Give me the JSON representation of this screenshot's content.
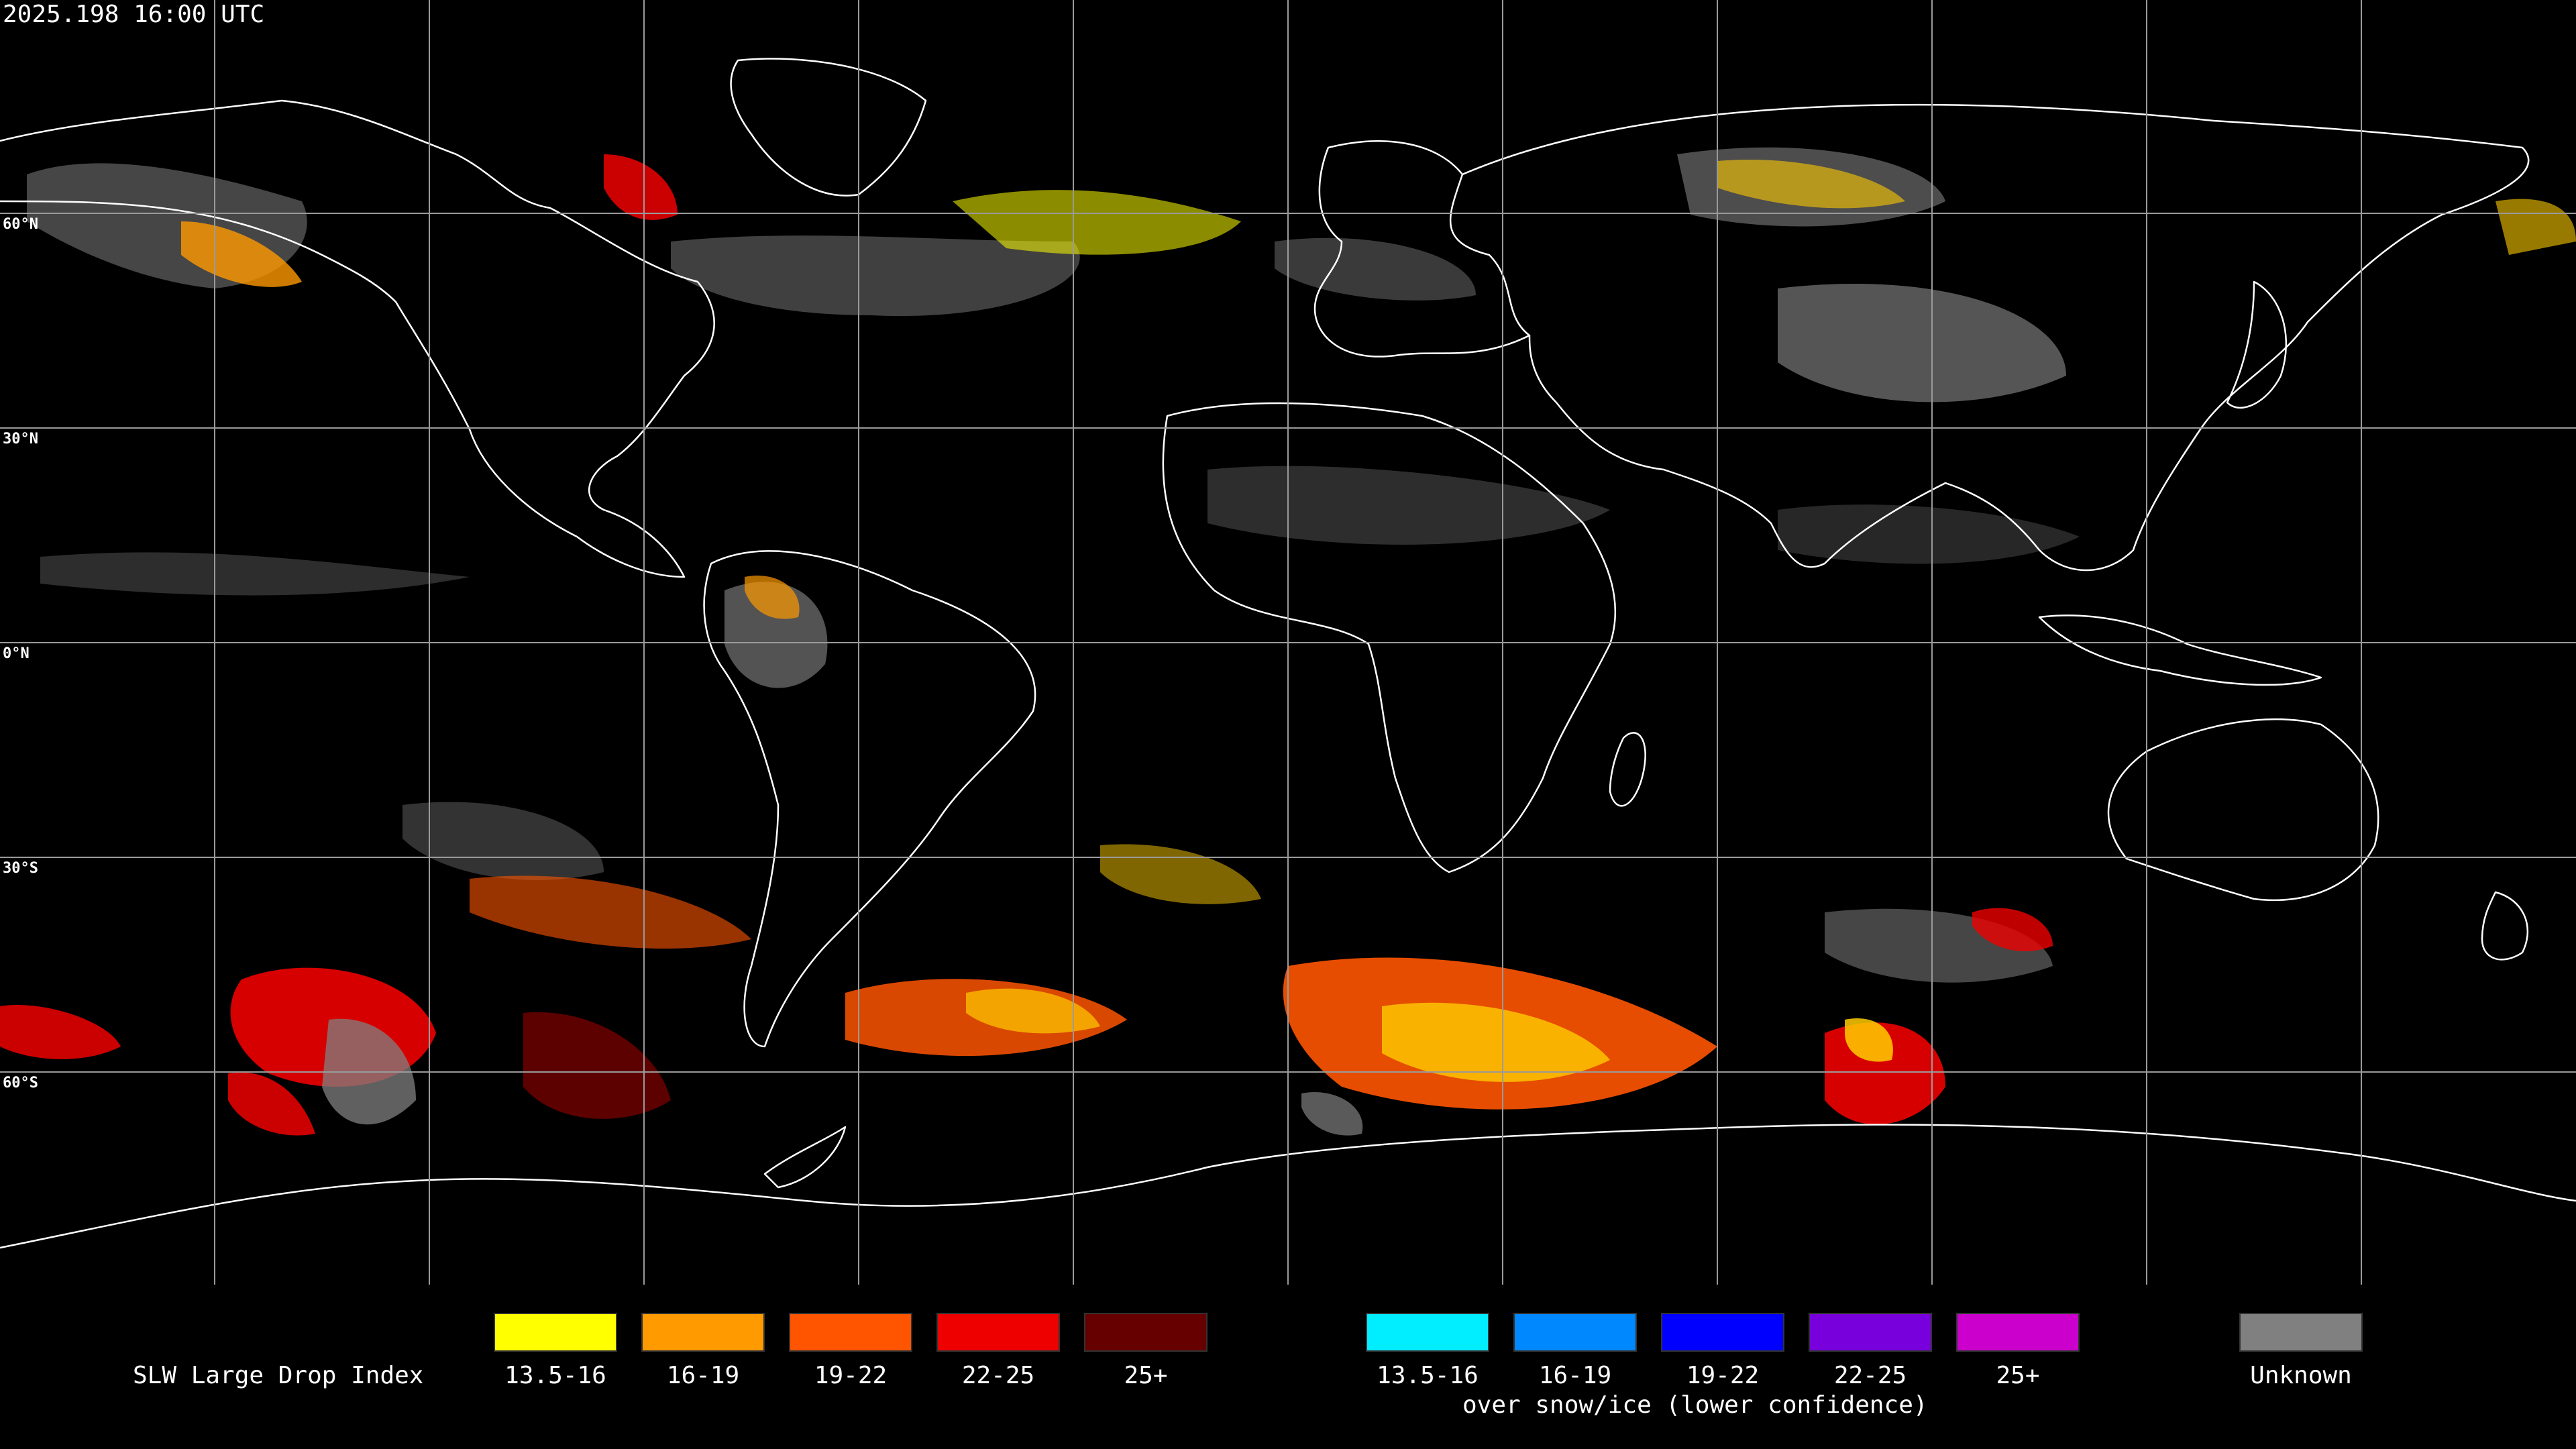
{
  "header": {
    "timestamp": "2025.198 16:00 UTC"
  },
  "map": {
    "lat_labels": [
      "60°N",
      "30°N",
      "0°N",
      "30°S",
      "60°S"
    ],
    "background_color": "#000000",
    "grid_color": "#9a9a9a",
    "coast_color": "#ffffff",
    "projection": "equirectangular",
    "grid_lat_step_deg": 30,
    "grid_lon_step_deg": 30
  },
  "legend": {
    "title": "SLW Large Drop Index",
    "water_bins": [
      {
        "label": "13.5-16",
        "color": "#ffff00"
      },
      {
        "label": "16-19",
        "color": "#ff9a00"
      },
      {
        "label": "19-22",
        "color": "#ff5500"
      },
      {
        "label": "22-25",
        "color": "#ee0000"
      },
      {
        "label": "25+",
        "color": "#660000"
      }
    ],
    "snow_bins": [
      {
        "label": "13.5-16",
        "color": "#00eeff"
      },
      {
        "label": "16-19",
        "color": "#0088ff"
      },
      {
        "label": "19-22",
        "color": "#0000ff"
      },
      {
        "label": "22-25",
        "color": "#7700dd"
      },
      {
        "label": "25+",
        "color": "#cc00cc"
      }
    ],
    "snow_note": "over snow/ice (lower confidence)",
    "unknown": {
      "label": "Unknown",
      "color": "#808080"
    }
  }
}
